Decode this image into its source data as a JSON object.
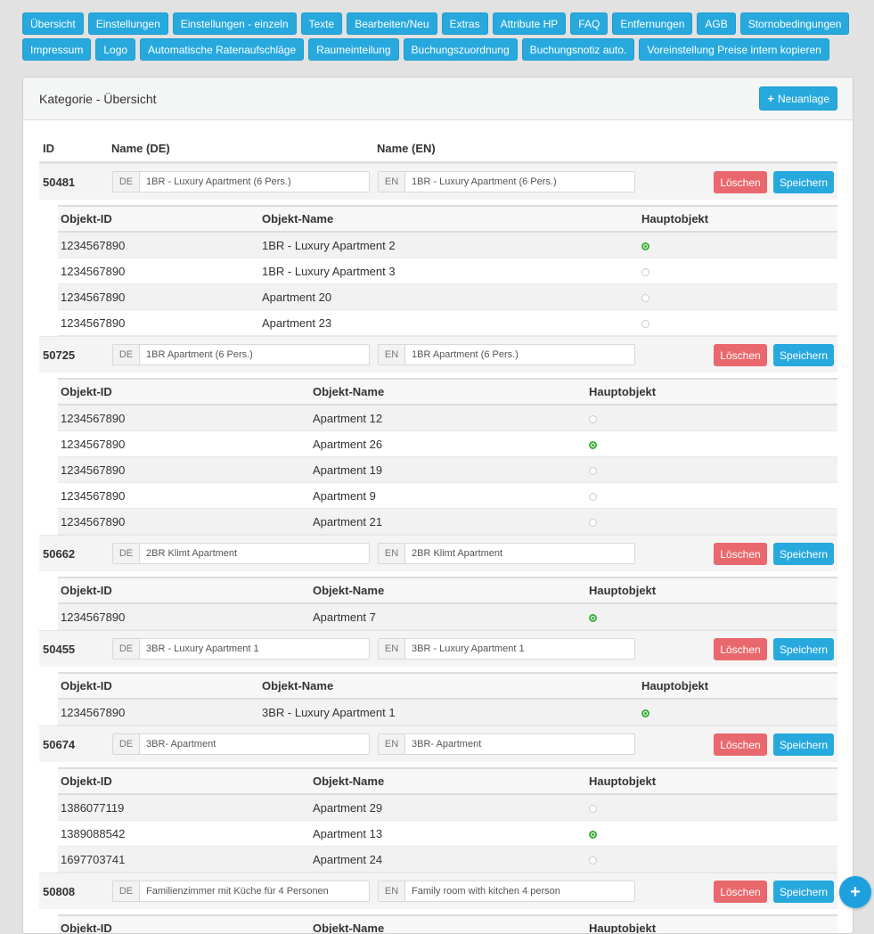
{
  "nav": {
    "row1": [
      "Übersicht",
      "Einstellungen",
      "Einstellungen - einzeln",
      "Texte",
      "Bearbeiten/Neu",
      "Extras",
      "Attribute HP",
      "FAQ",
      "Entfernungen",
      "AGB",
      "Stornobedingungen"
    ],
    "row2": [
      "Impressum",
      "Logo",
      "Automatische Ratenaufschläge",
      "Raumeinteilung",
      "Buchungszuordnung",
      "Buchungsnotiz auto.",
      "Voreinstellung Preise intern kopieren"
    ]
  },
  "panel": {
    "title": "Kategorie - Übersicht",
    "new_label": "Neuanlage",
    "col_id": "ID",
    "col_name_de": "Name (DE)",
    "col_name_en": "Name (EN)"
  },
  "labels": {
    "de": "DE",
    "en": "EN",
    "delete": "Löschen",
    "save": "Speichern",
    "obj_id": "Objekt-ID",
    "obj_name": "Objekt-Name",
    "main_obj": "Hauptobjekt"
  },
  "categories": [
    {
      "id": "50481",
      "name_de": "1BR - Luxury Apartment (6 Pers.)",
      "name_en": "1BR - Luxury Apartment (6 Pers.)",
      "objects": [
        {
          "id": "1234567890",
          "name": "1BR - Luxury Apartment 2",
          "main": true
        },
        {
          "id": "1234567890",
          "name": "1BR - Luxury Apartment 3",
          "main": false
        },
        {
          "id": "1234567890",
          "name": "Apartment 20",
          "main": false
        },
        {
          "id": "1234567890",
          "name": "Apartment 23",
          "main": false
        }
      ]
    },
    {
      "id": "50725",
      "name_de": "1BR Apartment (6 Pers.)",
      "name_en": "1BR Apartment (6 Pers.)",
      "objects": [
        {
          "id": "1234567890",
          "name": "Apartment 12",
          "main": false
        },
        {
          "id": "1234567890",
          "name": "Apartment 26",
          "main": true
        },
        {
          "id": "1234567890",
          "name": "Apartment 19",
          "main": false
        },
        {
          "id": "1234567890",
          "name": "Apartment 9",
          "main": false
        },
        {
          "id": "1234567890",
          "name": "Apartment 21",
          "main": false
        }
      ]
    },
    {
      "id": "50662",
      "name_de": "2BR Klimt Apartment",
      "name_en": "2BR Klimt Apartment",
      "objects": [
        {
          "id": "1234567890",
          "name": "Apartment 7",
          "main": true
        }
      ]
    },
    {
      "id": "50455",
      "name_de": "3BR - Luxury Apartment 1",
      "name_en": "3BR - Luxury Apartment 1",
      "objects": [
        {
          "id": "1234567890",
          "name": "3BR - Luxury Apartment 1",
          "main": true
        }
      ]
    },
    {
      "id": "50674",
      "name_de": "3BR- Apartment",
      "name_en": "3BR- Apartment",
      "objects": [
        {
          "id": "1386077119",
          "name": "Apartment 29",
          "main": false
        },
        {
          "id": "1389088542",
          "name": "Apartment 13",
          "main": true
        },
        {
          "id": "1697703741",
          "name": "Apartment 24",
          "main": false
        }
      ]
    },
    {
      "id": "50808",
      "name_de": "Familienzimmer mit Küche für 4 Personen",
      "name_en": "Family room with kitchen  4 person",
      "objects": []
    }
  ],
  "fab_icon": "plus-icon"
}
